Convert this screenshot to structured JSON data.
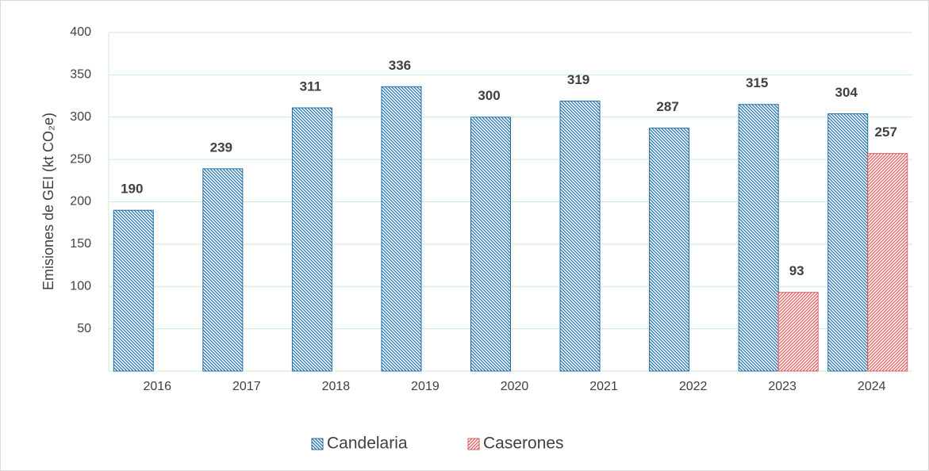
{
  "chart_data": {
    "type": "bar",
    "y_label": "Emisiones de GEI (kt CO₂e)",
    "categories": [
      "2016",
      "2017",
      "2018",
      "2019",
      "2020",
      "2021",
      "2022",
      "2023",
      "2024"
    ],
    "series": [
      {
        "name": "Candelaria",
        "color": "#1f6fa8",
        "hatch": "\\",
        "values": [
          190,
          239,
          311,
          336,
          300,
          319,
          287,
          315,
          304
        ]
      },
      {
        "name": "Caserones",
        "color": "#e05a5a",
        "hatch": "/",
        "values": [
          null,
          null,
          null,
          null,
          null,
          null,
          null,
          93,
          257
        ]
      }
    ],
    "ylim": [
      0,
      400
    ],
    "yticks": [
      50,
      100,
      150,
      200,
      250,
      300,
      350,
      400
    ],
    "grid": true,
    "legend": "bottom"
  }
}
